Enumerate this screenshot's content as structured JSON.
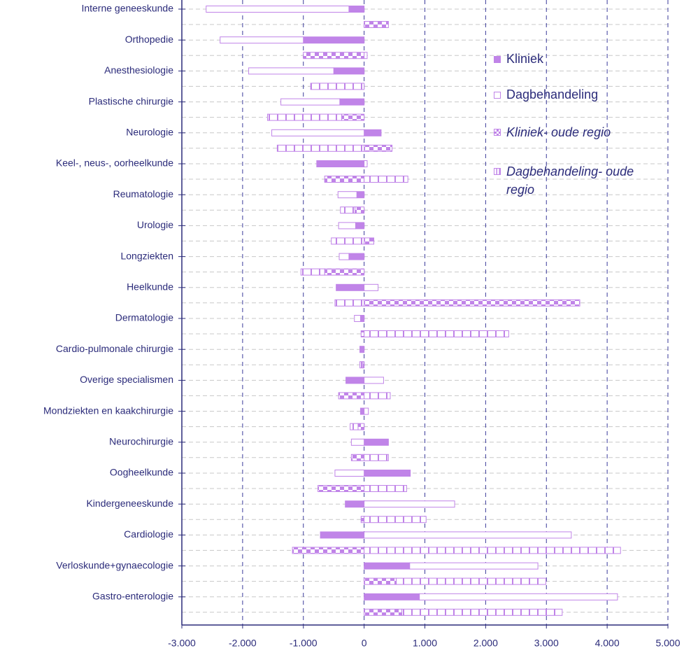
{
  "chart_data": {
    "type": "bar",
    "categories": [
      "Interne geneeskunde",
      "Orthopedie",
      "Anesthesiologie",
      "Plastische chirurgie",
      "Neurologie",
      "Keel-, neus-, oorheelkunde",
      "Reumatologie",
      "Urologie",
      "Longziekten",
      "Heelkunde",
      "Dermatologie",
      "Cardio-pulmonale chirurgie",
      "Overige specialismen",
      "Mondziekten en kaakchirurgie",
      "Neurochirurgie",
      "Oogheelkunde",
      "Kindergeneeskunde",
      "Cardiologie",
      "Verloskunde+gynaecologie",
      "Gastro-enterologie"
    ],
    "series": [
      {
        "name": "Kliniek",
        "color": "#c084e8",
        "pattern": "solid",
        "values": [
          -250,
          -1000,
          -500,
          -400,
          280,
          -780,
          -120,
          -140,
          -250,
          -460,
          -60,
          -70,
          -300,
          -60,
          400,
          760,
          -310,
          -720,
          750,
          910
        ]
      },
      {
        "name": "Dagbehandeling",
        "color": "#c084e8",
        "pattern": "outline",
        "values": [
          -2350,
          -1370,
          -1400,
          -970,
          -1520,
          50,
          -310,
          -280,
          -160,
          230,
          -100,
          0,
          320,
          70,
          -210,
          -480,
          1490,
          3410,
          2110,
          3260
        ]
      },
      {
        "name": "Kliniek- oude regio",
        "color": "#c084e8",
        "pattern": "checkered",
        "values": [
          400,
          -1000,
          0,
          -370,
          460,
          -650,
          -150,
          160,
          -650,
          3550,
          -50,
          -20,
          -420,
          -100,
          -210,
          -760,
          -50,
          -1180,
          530,
          620
        ]
      },
      {
        "name": "Dagbehandeling- oude regio",
        "color": "#c084e8",
        "pattern": "striped",
        "values": [
          0,
          50,
          -880,
          -1220,
          -1430,
          720,
          -240,
          -540,
          -390,
          -480,
          2380,
          -50,
          430,
          -130,
          400,
          700,
          1020,
          4220,
          2460,
          2640
        ]
      }
    ],
    "xlim": [
      -3000,
      5000
    ],
    "xticks": [
      {
        "value": -3000,
        "label": "-3.000"
      },
      {
        "value": -2000,
        "label": "-2.000"
      },
      {
        "value": -1000,
        "label": "-1.000"
      },
      0,
      {
        "value": 1000,
        "label": "1.000"
      },
      {
        "value": 2000,
        "label": "2.000"
      },
      {
        "value": 3000,
        "label": "3.000"
      },
      {
        "value": 4000,
        "label": "4.000"
      },
      {
        "value": 5000,
        "label": "5.000"
      }
    ],
    "grid": true
  }
}
